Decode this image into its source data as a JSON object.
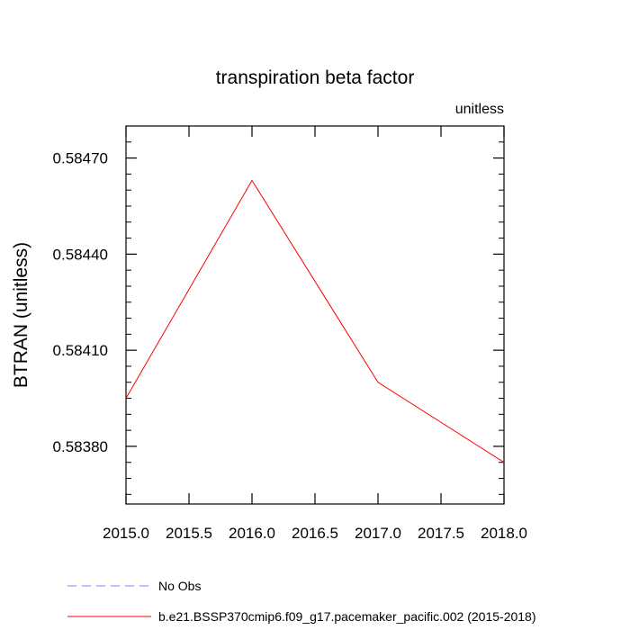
{
  "chart_data": {
    "type": "line",
    "title": "transpiration beta factor",
    "units_label": "unitless",
    "xlabel": "",
    "ylabel": "BTRAN  (unitless)",
    "xlim": [
      2015.0,
      2018.0
    ],
    "ylim": [
      0.58362,
      0.5848
    ],
    "x_ticks": [
      "2015.0",
      "2015.5",
      "2016.0",
      "2016.5",
      "2017.0",
      "2017.5",
      "2018.0"
    ],
    "x_tick_values": [
      2015.0,
      2015.5,
      2016.0,
      2016.5,
      2017.0,
      2017.5,
      2018.0
    ],
    "y_ticks": [
      "0.58470",
      "0.58440",
      "0.58410",
      "0.58380"
    ],
    "y_tick_values": [
      0.5847,
      0.5844,
      0.5841,
      0.5838
    ],
    "y_minor_step": 5e-05,
    "grid": false,
    "legend_placement": "bottom-left, below plot",
    "series": [
      {
        "name": "No Obs",
        "color": "#8080ff",
        "dash": "dashed",
        "x": [],
        "y": []
      },
      {
        "name": "b.e21.BSSP370cmip6.f09_g17.pacemaker_pacific.002 (2015-2018)",
        "color": "#ff0000",
        "dash": "solid",
        "x": [
          2015.0,
          2016.0,
          2017.0,
          2018.0
        ],
        "y": [
          0.58395,
          0.58463,
          0.584,
          0.58375
        ]
      }
    ]
  }
}
